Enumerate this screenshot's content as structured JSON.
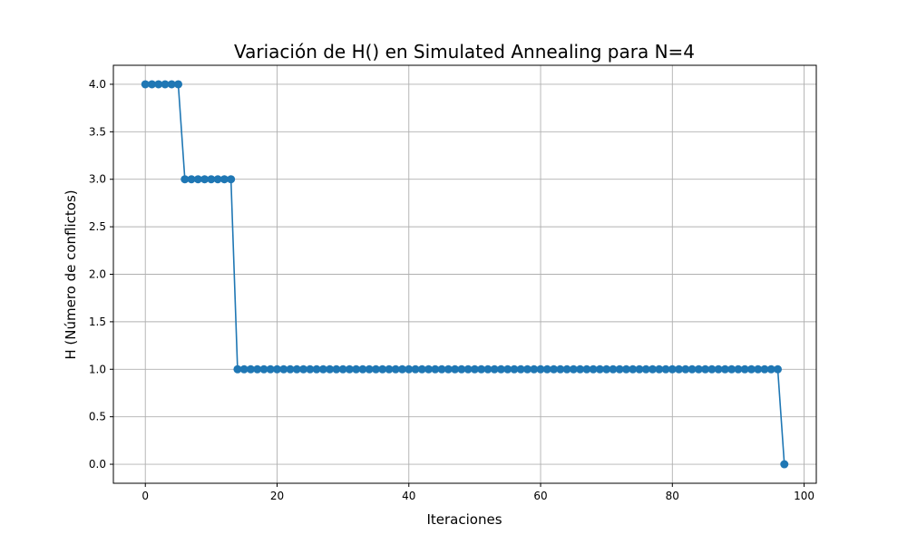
{
  "chart_data": {
    "type": "line",
    "title": "Variación de H() en Simulated Annealing para N=4",
    "xlabel": "Iteraciones",
    "ylabel": "H (Número de conflictos)",
    "xlim": [
      -4.85,
      101.85
    ],
    "ylim": [
      -0.2,
      4.2
    ],
    "xticks": [
      "0",
      "20",
      "40",
      "60",
      "80",
      "100"
    ],
    "yticks": [
      "0.0",
      "0.5",
      "1.0",
      "1.5",
      "2.0",
      "2.5",
      "3.0",
      "3.5",
      "4.0"
    ],
    "grid": true,
    "line_color": "#1f77b4",
    "marker": "circle",
    "segments": [
      {
        "x_start": 0,
        "x_end": 5,
        "y": 4
      },
      {
        "x_start": 6,
        "x_end": 13,
        "y": 3
      },
      {
        "x_start": 14,
        "x_end": 96,
        "y": 1
      },
      {
        "x_start": 97,
        "x_end": 97,
        "y": 0
      }
    ]
  }
}
